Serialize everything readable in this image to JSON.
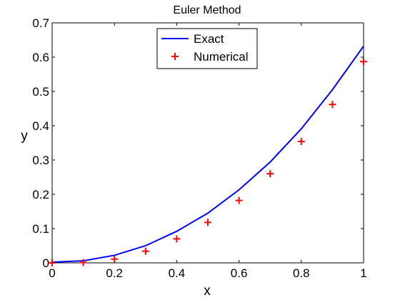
{
  "chart_data": {
    "type": "line",
    "title": "Euler Method",
    "xlabel": "x",
    "ylabel": "y",
    "xlim": [
      0,
      1
    ],
    "ylim": [
      0,
      0.7
    ],
    "xticks": [
      "0",
      "0.2",
      "0.4",
      "0.6",
      "0.8",
      "1"
    ],
    "yticks": [
      "0",
      "0.1",
      "0.2",
      "0.3",
      "0.4",
      "0.5",
      "0.6",
      "0.7"
    ],
    "grid": false,
    "legend_position": "top-center",
    "series": [
      {
        "name": "Exact",
        "style": "line",
        "color": "#0000ff",
        "x": [
          0,
          0.1,
          0.2,
          0.3,
          0.4,
          0.5,
          0.6,
          0.7,
          0.8,
          0.9,
          1.0
        ],
        "y": [
          0.002,
          0.006,
          0.022,
          0.05,
          0.092,
          0.145,
          0.213,
          0.294,
          0.391,
          0.505,
          0.632
        ]
      },
      {
        "name": "Numerical",
        "style": "marker-plus",
        "color": "#ff0000",
        "x": [
          0,
          0.1,
          0.2,
          0.3,
          0.4,
          0.5,
          0.6,
          0.7,
          0.8,
          0.9,
          1.0
        ],
        "y": [
          0.0,
          0.001,
          0.011,
          0.034,
          0.07,
          0.118,
          0.182,
          0.26,
          0.354,
          0.462,
          0.587
        ]
      }
    ]
  }
}
